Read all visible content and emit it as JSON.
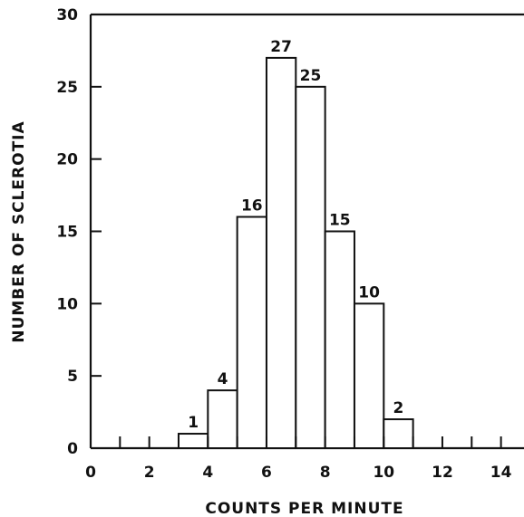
{
  "chart_data": {
    "type": "bar",
    "title": "",
    "xlabel": "COUNTS PER MINUTE",
    "ylabel": "NUMBER OF SCLEROTIA",
    "xlim": [
      0,
      15
    ],
    "ylim": [
      0,
      30
    ],
    "x_ticks": [
      0,
      2,
      4,
      6,
      8,
      10,
      12,
      14
    ],
    "x_minor_ticks": [
      1,
      3,
      5,
      7,
      9,
      11,
      13
    ],
    "y_ticks": [
      0,
      5,
      10,
      15,
      20,
      25,
      30
    ],
    "grid": false,
    "bins": [
      {
        "start": 3,
        "end": 4,
        "value": 1,
        "label": "1"
      },
      {
        "start": 4,
        "end": 5,
        "value": 4,
        "label": "4"
      },
      {
        "start": 5,
        "end": 6,
        "value": 16,
        "label": "16"
      },
      {
        "start": 6,
        "end": 7,
        "value": 27,
        "label": "27"
      },
      {
        "start": 7,
        "end": 8,
        "value": 25,
        "label": "25"
      },
      {
        "start": 8,
        "end": 9,
        "value": 15,
        "label": "15"
      },
      {
        "start": 9,
        "end": 10,
        "value": 10,
        "label": "10"
      },
      {
        "start": 10,
        "end": 11,
        "value": 2,
        "label": "2"
      }
    ]
  }
}
